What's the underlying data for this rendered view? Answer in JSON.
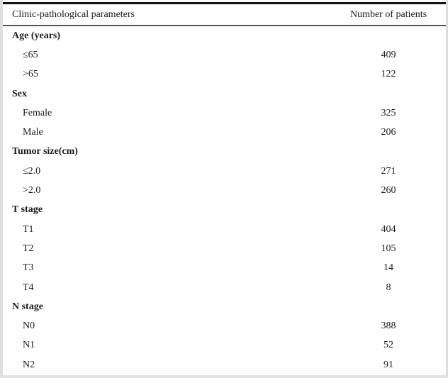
{
  "table": {
    "columns": [
      "Clinic-pathological parameters",
      "Number of patients"
    ],
    "rows": [
      {
        "type": "group",
        "label": "Age (years)",
        "value": ""
      },
      {
        "type": "item",
        "label": "≤65",
        "value": "409"
      },
      {
        "type": "item",
        "label": ">65",
        "value": "122"
      },
      {
        "type": "group",
        "label": "Sex",
        "value": ""
      },
      {
        "type": "item",
        "label": "Female",
        "value": "325"
      },
      {
        "type": "item",
        "label": "Male",
        "value": "206"
      },
      {
        "type": "group",
        "label": "Tumor size(cm)",
        "value": ""
      },
      {
        "type": "item",
        "label": "≤2.0",
        "value": "271"
      },
      {
        "type": "item",
        "label": ">2.0",
        "value": "260"
      },
      {
        "type": "group",
        "label": "T stage",
        "value": ""
      },
      {
        "type": "item",
        "label": "T1",
        "value": "404"
      },
      {
        "type": "item",
        "label": "T2",
        "value": "105"
      },
      {
        "type": "item",
        "label": "T3",
        "value": "14"
      },
      {
        "type": "item",
        "label": "T4",
        "value": "8"
      },
      {
        "type": "group",
        "label": "N stage",
        "value": ""
      },
      {
        "type": "item",
        "label": "N0",
        "value": "388"
      },
      {
        "type": "item",
        "label": "N1",
        "value": "52"
      },
      {
        "type": "item",
        "label": "N2",
        "value": "91"
      }
    ]
  }
}
